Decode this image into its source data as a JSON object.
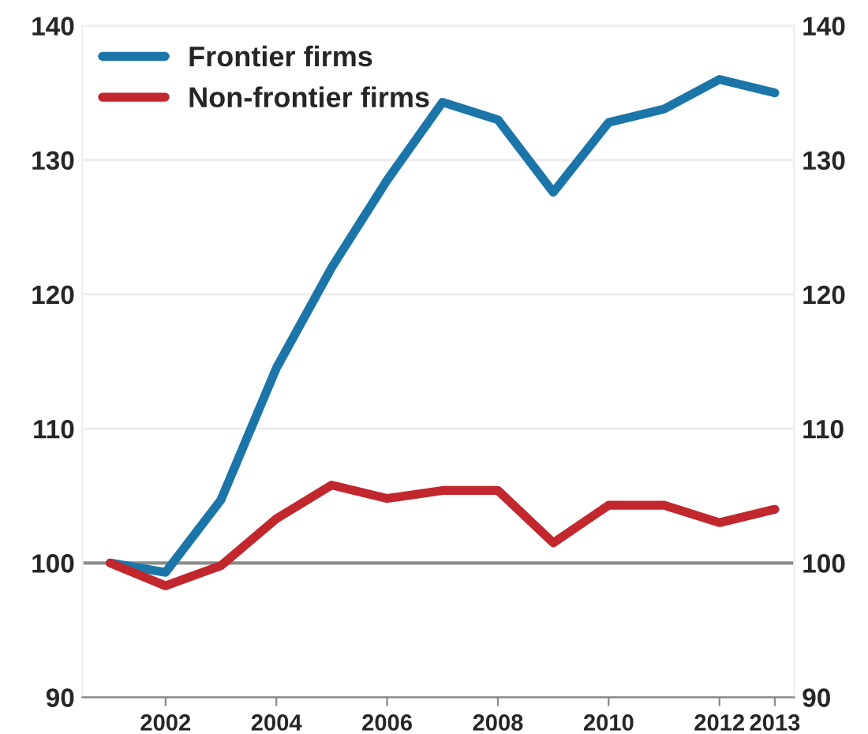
{
  "chart_data": {
    "type": "line",
    "x": [
      2001,
      2002,
      2003,
      2004,
      2005,
      2006,
      2007,
      2008,
      2009,
      2010,
      2011,
      2012,
      2013
    ],
    "series": [
      {
        "name": "Frontier firms",
        "color": "#1b75a9",
        "values": [
          100,
          99.3,
          104.7,
          114.5,
          122,
          128.5,
          134.3,
          133,
          127.6,
          132.8,
          133.8,
          136,
          135
        ]
      },
      {
        "name": "Non-frontier firms",
        "color": "#c1272d",
        "values": [
          100,
          98.3,
          99.8,
          103.3,
          105.8,
          104.8,
          105.4,
          105.4,
          101.5,
          104.3,
          104.3,
          103,
          104
        ]
      }
    ],
    "xlim": [
      2000.5,
      2013.35
    ],
    "xticks": [
      2002,
      2004,
      2006,
      2008,
      2010,
      2012,
      2013
    ],
    "ylim": [
      90,
      140
    ],
    "yticks": [
      90,
      100,
      110,
      120,
      130,
      140
    ],
    "y2lim": [
      90,
      140
    ],
    "y2ticks": [
      90,
      100,
      110,
      120,
      130,
      140
    ],
    "ref_lines": [
      {
        "axis": "y",
        "value": 100,
        "color": "#8c8c8c"
      }
    ],
    "grid": "y",
    "legend": "top left",
    "marker": "none",
    "line_style": "solid"
  }
}
